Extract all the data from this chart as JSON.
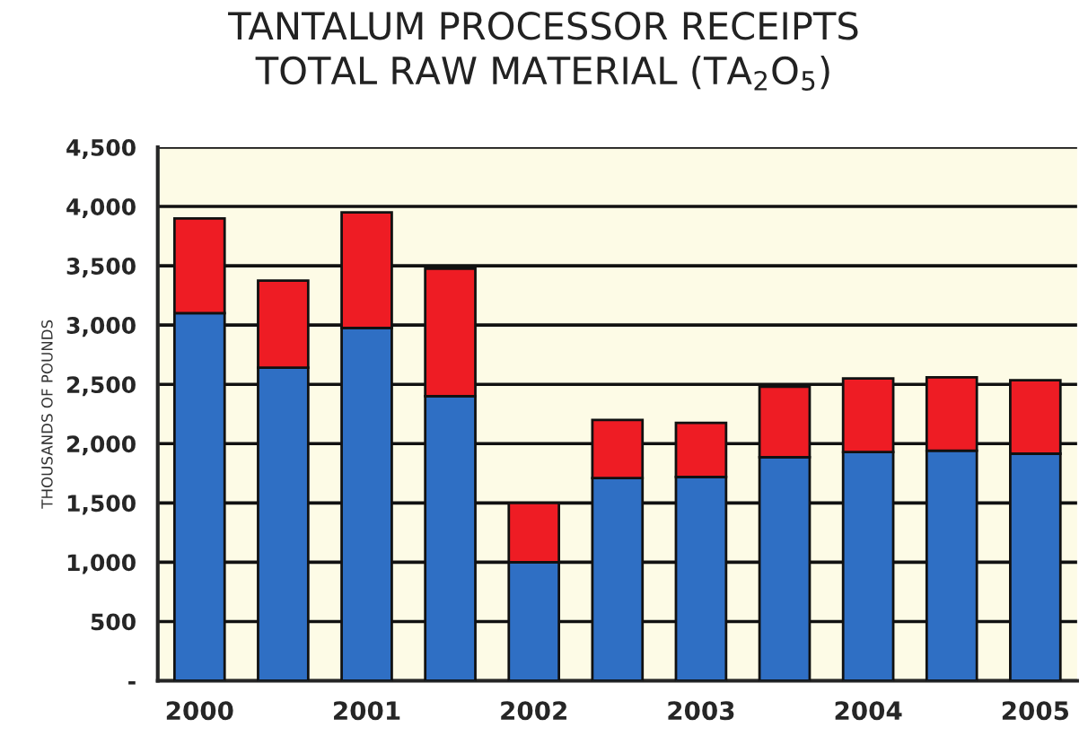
{
  "chart_data": {
    "type": "bar",
    "title": "TANTALUM PROCESSOR RECEIPTS\nTOTAL RAW MATERIAL (TA$_{2}$O$_{5}$)",
    "ylabel": "THOUSANDS OF POUNDS",
    "categories": [
      "2000",
      null,
      "2001",
      null,
      "2002",
      null,
      "2003",
      null,
      "2004",
      null,
      "2005"
    ],
    "stacked": true,
    "series": [
      {
        "color": "#2f6fc4",
        "values": [
          3100,
          2640,
          2975,
          2400,
          1000,
          1710,
          1720,
          1885,
          1930,
          1940,
          1915
        ]
      },
      {
        "color": "#ee1c24",
        "values": [
          800,
          735,
          975,
          1075,
          500,
          490,
          455,
          595,
          620,
          620,
          620
        ]
      }
    ],
    "ylim": [
      0,
      4500
    ],
    "yticks": [
      {
        "value": 0,
        "label": "-"
      },
      500,
      {
        "value": 1000,
        "label": "1,000"
      },
      {
        "value": 1500,
        "label": "1,500"
      },
      {
        "value": 2000,
        "label": "2,000"
      },
      {
        "value": 2500,
        "label": "2,500"
      },
      {
        "value": 3000,
        "label": "3,000"
      },
      {
        "value": 3500,
        "label": "3,500"
      },
      {
        "value": 4000,
        "label": "4,000"
      },
      {
        "value": 4500,
        "label": "4,500"
      }
    ],
    "grid": "y",
    "legend": false
  }
}
